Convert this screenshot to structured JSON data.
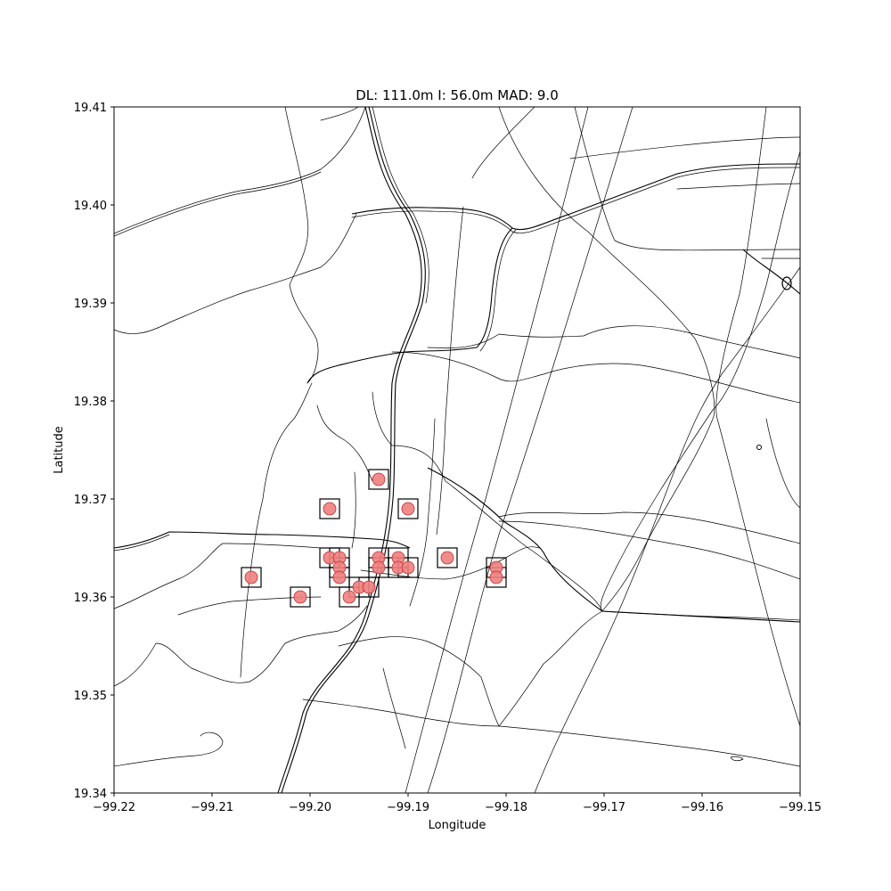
{
  "chart_data": {
    "type": "scatter",
    "title": "DL: 111.0m I: 56.0m MAD: 9.0",
    "xlabel": "Longitude",
    "ylabel": "Latitude",
    "xlim": [
      -99.22,
      -99.15
    ],
    "ylim": [
      19.34,
      19.41
    ],
    "xticks": [
      -99.22,
      -99.21,
      -99.2,
      -99.19,
      -99.18,
      -99.17,
      -99.16,
      -99.15
    ],
    "yticks": [
      19.34,
      19.35,
      19.36,
      19.37,
      19.38,
      19.39,
      19.4,
      19.41
    ],
    "xtick_labels": [
      "−99.22",
      "−99.21",
      "−99.20",
      "−99.19",
      "−99.18",
      "−99.17",
      "−99.16",
      "−99.15"
    ],
    "ytick_labels": [
      "19.34",
      "19.35",
      "19.36",
      "19.37",
      "19.38",
      "19.39",
      "19.40",
      "19.41"
    ],
    "grid": false,
    "point_color": "#f08080",
    "box_color": "#000000",
    "points": [
      {
        "x": -99.193,
        "y": 19.372
      },
      {
        "x": -99.198,
        "y": 19.369
      },
      {
        "x": -99.19,
        "y": 19.369
      },
      {
        "x": -99.198,
        "y": 19.364
      },
      {
        "x": -99.197,
        "y": 19.364
      },
      {
        "x": -99.197,
        "y": 19.363
      },
      {
        "x": -99.197,
        "y": 19.362
      },
      {
        "x": -99.193,
        "y": 19.364
      },
      {
        "x": -99.193,
        "y": 19.363
      },
      {
        "x": -99.191,
        "y": 19.364
      },
      {
        "x": -99.191,
        "y": 19.363
      },
      {
        "x": -99.19,
        "y": 19.363
      },
      {
        "x": -99.186,
        "y": 19.364
      },
      {
        "x": -99.181,
        "y": 19.363
      },
      {
        "x": -99.181,
        "y": 19.362
      },
      {
        "x": -99.206,
        "y": 19.362
      },
      {
        "x": -99.201,
        "y": 19.36
      },
      {
        "x": -99.196,
        "y": 19.36
      },
      {
        "x": -99.195,
        "y": 19.361
      },
      {
        "x": -99.194,
        "y": 19.361
      }
    ]
  }
}
